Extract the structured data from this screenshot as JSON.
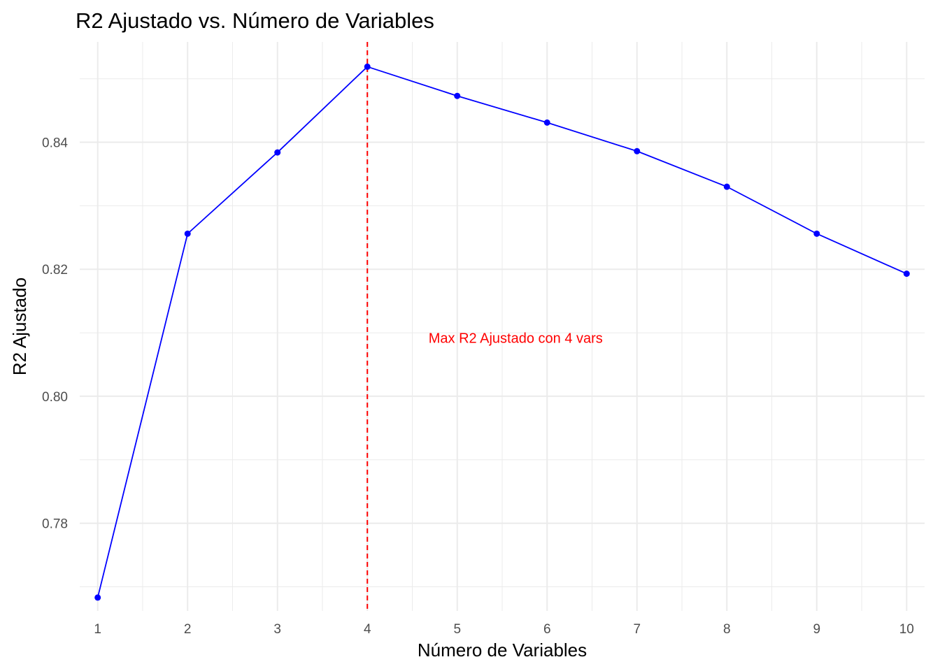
{
  "chart_data": {
    "type": "line",
    "title": "R2 Ajustado vs. Número de Variables",
    "xlabel": "Número de Variables",
    "ylabel": "R2 Ajustado",
    "xlim": [
      0.8,
      10.2
    ],
    "ylim": [
      0.7662,
      0.8558
    ],
    "x_ticks": [
      1,
      2,
      3,
      4,
      5,
      6,
      7,
      8,
      9,
      10
    ],
    "x_tick_labels": [
      "1",
      "2",
      "3",
      "4",
      "5",
      "6",
      "7",
      "8",
      "9",
      "10"
    ],
    "y_ticks": [
      0.78,
      0.8,
      0.82,
      0.84
    ],
    "y_tick_labels": [
      "0.78",
      "0.80",
      "0.82",
      "0.84"
    ],
    "grid": true,
    "series": [
      {
        "x": [
          1,
          2,
          3,
          4,
          5,
          6,
          7,
          8,
          9,
          10
        ],
        "y": [
          0.7683,
          0.8256,
          0.8384,
          0.8519,
          0.8473,
          0.8431,
          0.8386,
          0.833,
          0.8256,
          0.8193
        ],
        "color": "#0000ff"
      }
    ],
    "vline": {
      "x": 4,
      "color": "#ff0000",
      "style": "dashed"
    },
    "annotation": {
      "text": "Max R2 Ajustado con 4 vars",
      "x": 5.65,
      "y": 0.809,
      "color": "#ff0000"
    }
  }
}
